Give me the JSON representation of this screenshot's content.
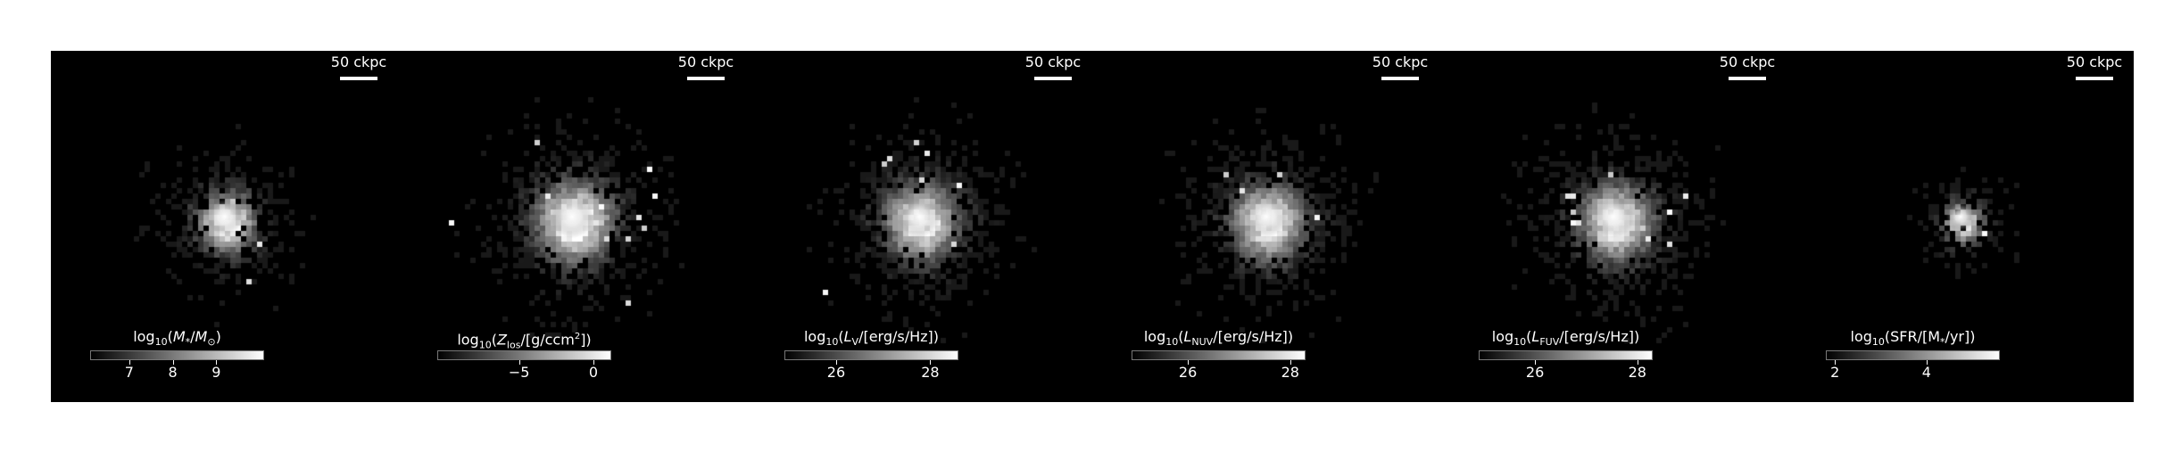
{
  "scale_bar_label": "50 ckpc",
  "panels": [
    {
      "id": "stellar-mass",
      "cbar": {
        "pre": "log",
        "sub": "10",
        "mid": "(",
        "var": "M",
        "var_sub": "*",
        "post": "/M",
        "post_sub": "⊙",
        "end": ")"
      },
      "cbar_range": [
        6.1,
        10.1
      ],
      "ticks": [
        {
          "label": "7",
          "value": 7
        },
        {
          "label": "8",
          "value": 8
        },
        {
          "label": "9",
          "value": 9
        }
      ],
      "blob": {
        "spread": 0.7,
        "core": 0.9,
        "density": 0.35
      }
    },
    {
      "id": "metallicity",
      "cbar": {
        "pre": "log",
        "sub": "10",
        "mid": "(",
        "var": "Z",
        "var_sub": "los",
        "post": "/[g/ccm",
        "post_sup": "2",
        "end": "])"
      },
      "cbar_range": [
        -10.5,
        1.2
      ],
      "ticks": [
        {
          "label": "−5",
          "value": -5
        },
        {
          "label": "0",
          "value": 0
        }
      ],
      "blob": {
        "spread": 1.0,
        "core": 1.0,
        "density": 0.55
      }
    },
    {
      "id": "v-band",
      "cbar": {
        "pre": "log",
        "sub": "10",
        "mid": "(",
        "var": "L",
        "var_sub": "V",
        "post": "/[erg/s/Hz]",
        "end": ")"
      },
      "cbar_range": [
        24.9,
        28.6
      ],
      "ticks": [
        {
          "label": "26",
          "value": 26
        },
        {
          "label": "28",
          "value": 28
        }
      ],
      "blob": {
        "spread": 0.95,
        "core": 0.9,
        "density": 0.5
      }
    },
    {
      "id": "nuv",
      "cbar": {
        "pre": "log",
        "sub": "10",
        "mid": "(",
        "var": "L",
        "var_sub": "NUV",
        "post": "/[erg/s/Hz]",
        "end": ")"
      },
      "cbar_range": [
        24.9,
        28.3
      ],
      "ticks": [
        {
          "label": "26",
          "value": 26
        },
        {
          "label": "28",
          "value": 28
        }
      ],
      "blob": {
        "spread": 0.95,
        "core": 0.9,
        "density": 0.5
      }
    },
    {
      "id": "fuv",
      "cbar": {
        "pre": "log",
        "sub": "10",
        "mid": "(",
        "var": "L",
        "var_sub": "FUV",
        "post": "/[erg/s/Hz]",
        "end": ")"
      },
      "cbar_range": [
        24.9,
        28.3
      ],
      "ticks": [
        {
          "label": "26",
          "value": 26
        },
        {
          "label": "28",
          "value": 28
        }
      ],
      "blob": {
        "spread": 0.95,
        "core": 0.9,
        "density": 0.5
      }
    },
    {
      "id": "sfr",
      "cbar": {
        "pre": "log",
        "sub": "10",
        "mid": "(SFR/[M",
        "var": "",
        "var_sub": "*",
        "post": "/yr]",
        "end": ")"
      },
      "cbar_range": [
        1.8,
        5.6
      ],
      "ticks": [
        {
          "label": "2",
          "value": 2
        },
        {
          "label": "4",
          "value": 4
        }
      ],
      "blob": {
        "spread": 0.4,
        "core": 0.8,
        "density": 0.3
      }
    }
  ]
}
